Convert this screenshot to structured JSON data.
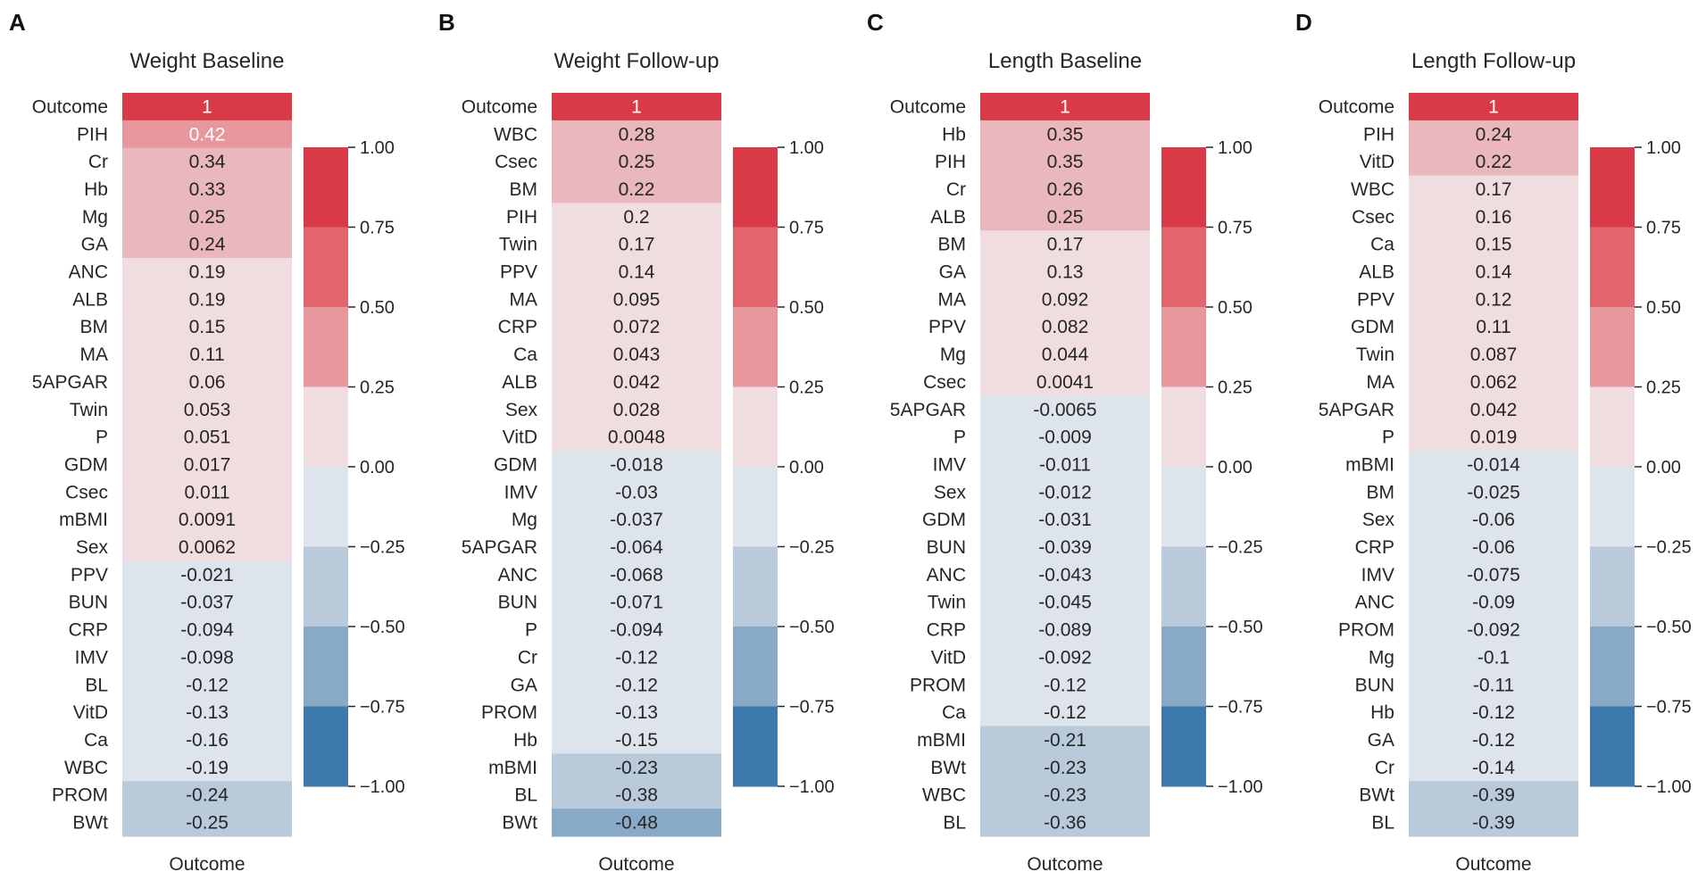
{
  "chart_data": [
    {
      "type": "heatmap",
      "panel_letter": "A",
      "title": "Weight Baseline",
      "xlabel": "Outcome",
      "labels": [
        "Outcome",
        "PIH",
        "Cr",
        "Hb",
        "Mg",
        "GA",
        "ANC",
        "ALB",
        "BM",
        "MA",
        "5APGAR",
        "Twin",
        "P",
        "GDM",
        "Csec",
        "mBMI",
        "Sex",
        "PPV",
        "BUN",
        "CRP",
        "IMV",
        "BL",
        "VitD",
        "Ca",
        "WBC",
        "PROM",
        "BWt"
      ],
      "values": [
        1,
        0.42,
        0.34,
        0.33,
        0.25,
        0.24,
        0.19,
        0.19,
        0.15,
        0.11,
        0.06,
        0.053,
        0.051,
        0.017,
        0.011,
        0.0091,
        0.0062,
        -0.021,
        -0.037,
        -0.094,
        -0.098,
        -0.12,
        -0.13,
        -0.16,
        -0.19,
        -0.24,
        -0.25
      ],
      "value_labels": [
        "1",
        "0.42",
        "0.34",
        "0.33",
        "0.25",
        "0.24",
        "0.19",
        "0.19",
        "0.15",
        "0.11",
        "0.06",
        "0.053",
        "0.051",
        "0.017",
        "0.011",
        "0.0091",
        "0.0062",
        "-0.021",
        "-0.037",
        "-0.094",
        "-0.098",
        "-0.12",
        "-0.13",
        "-0.16",
        "-0.19",
        "-0.24",
        "-0.25"
      ]
    },
    {
      "type": "heatmap",
      "panel_letter": "B",
      "title": "Weight Follow-up",
      "xlabel": "Outcome",
      "labels": [
        "Outcome",
        "WBC",
        "Csec",
        "BM",
        "PIH",
        "Twin",
        "PPV",
        "MA",
        "CRP",
        "Ca",
        "ALB",
        "Sex",
        "VitD",
        "GDM",
        "IMV",
        "Mg",
        "5APGAR",
        "ANC",
        "BUN",
        "P",
        "Cr",
        "GA",
        "PROM",
        "Hb",
        "mBMI",
        "BL",
        "BWt"
      ],
      "values": [
        1,
        0.28,
        0.25,
        0.22,
        0.2,
        0.17,
        0.14,
        0.095,
        0.072,
        0.043,
        0.042,
        0.028,
        0.0048,
        -0.018,
        -0.03,
        -0.037,
        -0.064,
        -0.068,
        -0.071,
        -0.094,
        -0.12,
        -0.12,
        -0.13,
        -0.15,
        -0.23,
        -0.38,
        -0.48
      ],
      "value_labels": [
        "1",
        "0.28",
        "0.25",
        "0.22",
        "0.2",
        "0.17",
        "0.14",
        "0.095",
        "0.072",
        "0.043",
        "0.042",
        "0.028",
        "0.0048",
        "-0.018",
        "-0.03",
        "-0.037",
        "-0.064",
        "-0.068",
        "-0.071",
        "-0.094",
        "-0.12",
        "-0.12",
        "-0.13",
        "-0.15",
        "-0.23",
        "-0.38",
        "-0.48"
      ]
    },
    {
      "type": "heatmap",
      "panel_letter": "C",
      "title": "Length Baseline",
      "xlabel": "Outcome",
      "labels": [
        "Outcome",
        "Hb",
        "PIH",
        "Cr",
        "ALB",
        "BM",
        "GA",
        "MA",
        "PPV",
        "Mg",
        "Csec",
        "5APGAR",
        "P",
        "IMV",
        "Sex",
        "GDM",
        "BUN",
        "ANC",
        "Twin",
        "CRP",
        "VitD",
        "PROM",
        "Ca",
        "mBMI",
        "BWt",
        "WBC",
        "BL"
      ],
      "values": [
        1,
        0.35,
        0.35,
        0.26,
        0.25,
        0.17,
        0.13,
        0.092,
        0.082,
        0.044,
        0.0041,
        -0.0065,
        -0.009,
        -0.011,
        -0.012,
        -0.031,
        -0.039,
        -0.043,
        -0.045,
        -0.089,
        -0.092,
        -0.12,
        -0.12,
        -0.21,
        -0.23,
        -0.23,
        -0.36
      ],
      "value_labels": [
        "1",
        "0.35",
        "0.35",
        "0.26",
        "0.25",
        "0.17",
        "0.13",
        "0.092",
        "0.082",
        "0.044",
        "0.0041",
        "-0.0065",
        "-0.009",
        "-0.011",
        "-0.012",
        "-0.031",
        "-0.039",
        "-0.043",
        "-0.045",
        "-0.089",
        "-0.092",
        "-0.12",
        "-0.12",
        "-0.21",
        "-0.23",
        "-0.23",
        "-0.36"
      ]
    },
    {
      "type": "heatmap",
      "panel_letter": "D",
      "title": "Length Follow-up",
      "xlabel": "Outcome",
      "labels": [
        "Outcome",
        "PIH",
        "VitD",
        "WBC",
        "Csec",
        "Ca",
        "ALB",
        "PPV",
        "GDM",
        "Twin",
        "MA",
        "5APGAR",
        "P",
        "mBMI",
        "BM",
        "Sex",
        "CRP",
        "IMV",
        "ANC",
        "PROM",
        "Mg",
        "BUN",
        "Hb",
        "GA",
        "Cr",
        "BWt",
        "BL"
      ],
      "values": [
        1,
        0.24,
        0.22,
        0.17,
        0.16,
        0.15,
        0.14,
        0.12,
        0.11,
        0.087,
        0.062,
        0.042,
        0.019,
        -0.014,
        -0.025,
        -0.06,
        -0.06,
        -0.075,
        -0.09,
        -0.092,
        -0.1,
        -0.11,
        -0.12,
        -0.12,
        -0.14,
        -0.39,
        -0.39
      ],
      "value_labels": [
        "1",
        "0.24",
        "0.22",
        "0.17",
        "0.16",
        "0.15",
        "0.14",
        "0.12",
        "0.11",
        "0.087",
        "0.062",
        "0.042",
        "0.019",
        "-0.014",
        "-0.025",
        "-0.06",
        "-0.06",
        "-0.075",
        "-0.09",
        "-0.092",
        "-0.1",
        "-0.11",
        "-0.12",
        "-0.12",
        "-0.14",
        "-0.39",
        "-0.39"
      ]
    }
  ],
  "colorbar": {
    "range": [
      -1.0,
      1.0
    ],
    "ticks": [
      1.0,
      0.75,
      0.5,
      0.25,
      0.0,
      -0.25,
      -0.5,
      -0.75,
      -1.0
    ],
    "tick_labels": [
      "1.00",
      "0.75",
      "0.50",
      "0.25",
      "0.00",
      "−0.25",
      "−0.50",
      "−0.75",
      "−1.00"
    ],
    "bins": [
      {
        "from": 0.75,
        "to": 1.0,
        "color": "#d93a48"
      },
      {
        "from": 0.5,
        "to": 0.75,
        "color": "#e2646d"
      },
      {
        "from": 0.25,
        "to": 0.5,
        "color": "#e8979c"
      },
      {
        "from": 0.0,
        "to": 0.25,
        "color": "#f0dde0"
      },
      {
        "from": -0.25,
        "to": 0.0,
        "color": "#dde4ec"
      },
      {
        "from": -0.5,
        "to": -0.25,
        "color": "#b9cbdb"
      },
      {
        "from": -0.75,
        "to": -0.5,
        "color": "#89aac6"
      },
      {
        "from": -1.0,
        "to": -0.75,
        "color": "#3d7aab"
      }
    ],
    "cell_bins": [
      {
        "from": 0.75,
        "to": 1.0,
        "color": "#d93a48"
      },
      {
        "from": 0.5,
        "to": 0.75,
        "color": "#e2646d"
      },
      {
        "from": 0.4,
        "to": 0.5,
        "color": "#e8979c"
      },
      {
        "from": 0.2,
        "to": 0.4,
        "color": "#e9b7bc"
      },
      {
        "from": 0.0,
        "to": 0.2,
        "color": "#f0dde0"
      },
      {
        "from": -0.2,
        "to": 0.0,
        "color": "#dde4ec"
      },
      {
        "from": -0.4,
        "to": -0.2,
        "color": "#b9cbdb"
      },
      {
        "from": -0.6,
        "to": -0.4,
        "color": "#89aac6"
      },
      {
        "from": -1.0,
        "to": -0.6,
        "color": "#3d7aab"
      }
    ]
  }
}
